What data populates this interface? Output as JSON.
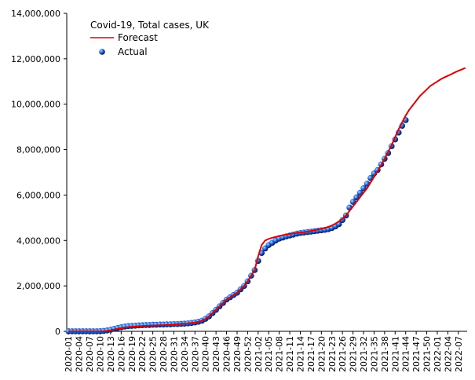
{
  "chart_data": {
    "type": "line_scatter",
    "legend_title": "Covid-19, Total cases, UK",
    "categories": [
      "2020-01",
      null,
      null,
      "2020-04",
      null,
      null,
      "2020-07",
      null,
      null,
      "2020-10",
      null,
      null,
      "2020-13",
      null,
      null,
      "2020-16",
      null,
      null,
      "2020-19",
      null,
      null,
      "2020-22",
      null,
      null,
      "2020-25",
      null,
      null,
      "2020-28",
      null,
      null,
      "2020-31",
      null,
      null,
      "2020-34",
      null,
      null,
      "2020-37",
      null,
      null,
      "2020-40",
      null,
      null,
      "2020-43",
      null,
      null,
      "2020-46",
      null,
      null,
      "2020-49",
      null,
      null,
      "2020-52",
      null,
      null,
      "2021-02",
      null,
      null,
      "2021-05",
      null,
      null,
      "2021-08",
      null,
      null,
      "2021-11",
      null,
      null,
      "2021-14",
      null,
      null,
      "2021-17",
      null,
      null,
      "2021-20",
      null,
      null,
      "2021-23",
      null,
      null,
      "2021-26",
      null,
      null,
      "2021-29",
      null,
      null,
      "2021-32",
      null,
      null,
      "2021-35",
      null,
      null,
      "2021-38",
      null,
      null,
      "2021-41",
      null,
      null,
      "2021-44",
      null,
      null,
      "2021-47",
      null,
      null,
      "2021-50",
      null,
      null,
      "2022-01",
      null,
      null,
      "2022-04",
      null,
      null,
      "2022-07",
      null,
      null
    ],
    "series": [
      {
        "name": "Forecast",
        "color": "#dd0000",
        "style": "line",
        "values": [
          0,
          0,
          0,
          0,
          0,
          0,
          0,
          0,
          0,
          0,
          0,
          20000,
          50000,
          80000,
          110000,
          140000,
          160000,
          180000,
          200000,
          210000,
          220000,
          230000,
          240000,
          250000,
          250000,
          260000,
          270000,
          270000,
          280000,
          290000,
          300000,
          320000,
          330000,
          340000,
          350000,
          370000,
          390000,
          420000,
          470000,
          550000,
          660000,
          800000,
          950000,
          1100000,
          1250000,
          1400000,
          1500000,
          1600000,
          1700000,
          1850000,
          2000000,
          2200000,
          2450000,
          2700000,
          3300000,
          3800000,
          4000000,
          4070000,
          4120000,
          4160000,
          4200000,
          4230000,
          4260000,
          4290000,
          4310000,
          4330000,
          4350000,
          4370000,
          4390000,
          4420000,
          4450000,
          4480000,
          4510000,
          4550000,
          4600000,
          4660000,
          4740000,
          4840000,
          4960000,
          5100000,
          5300000,
          5500000,
          5700000,
          5900000,
          6100000,
          6300000,
          6550000,
          6800000,
          7050000,
          7300000,
          7600000,
          7900000,
          8200000,
          8550000,
          8900000,
          9200000,
          9500000,
          9750000,
          9950000,
          10150000,
          10350000,
          10500000,
          10650000,
          10800000,
          10900000,
          11000000,
          11100000,
          11180000,
          11250000,
          11320000,
          11400000,
          11470000,
          11530000,
          11600000
        ]
      },
      {
        "name": "Actual",
        "color": "#2255cc",
        "style": "dots",
        "values": [
          1000,
          1000,
          1000,
          1000,
          1000,
          1000,
          1000,
          1000,
          2000,
          5000,
          20000,
          40000,
          70000,
          110000,
          150000,
          180000,
          210000,
          230000,
          240000,
          250000,
          260000,
          270000,
          280000,
          280000,
          290000,
          290000,
          300000,
          300000,
          310000,
          310000,
          320000,
          320000,
          330000,
          340000,
          350000,
          370000,
          390000,
          420000,
          470000,
          550000,
          660000,
          800000,
          950000,
          1100000,
          1250000,
          1400000,
          1500000,
          1600000,
          1700000,
          1850000,
          2000000,
          2200000,
          2450000,
          2700000,
          3100000,
          3450000,
          3650000,
          3800000,
          3900000,
          4000000,
          4080000,
          4130000,
          4180000,
          4220000,
          4260000,
          4300000,
          4330000,
          4350000,
          4370000,
          4390000,
          4410000,
          4430000,
          4450000,
          4470000,
          4500000,
          4550000,
          4620000,
          4720000,
          4900000,
          5100000,
          5450000,
          5700000,
          5900000,
          6100000,
          6300000,
          6500000,
          6750000,
          6950000,
          7100000,
          7350000,
          7600000,
          7850000,
          8150000,
          8450000,
          8750000,
          9050000,
          9300000
        ]
      }
    ],
    "ylim": [
      0,
      14000000
    ],
    "yticks": [
      0,
      {
        "value": 2000000,
        "label": "2,000,000"
      },
      {
        "value": 4000000,
        "label": "4,000,000"
      },
      {
        "value": 6000000,
        "label": "6,000,000"
      },
      {
        "value": 8000000,
        "label": "8,000,000"
      },
      {
        "value": 10000000,
        "label": "10,000,000"
      },
      {
        "value": 12000000,
        "label": "12,000,000"
      },
      {
        "value": 14000000,
        "label": "14,000,000"
      }
    ],
    "grid": false
  }
}
